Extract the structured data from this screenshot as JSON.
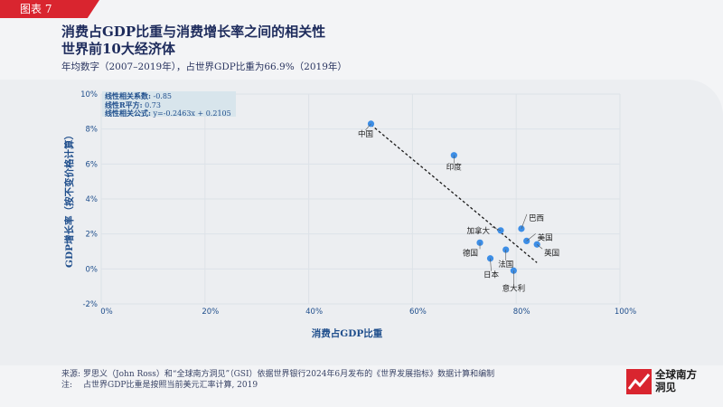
{
  "tag": "图表 7",
  "title_line1": "消费占GDP比重与消费增长率之间的相关性",
  "title_line2": "世界前10大经济体",
  "subtitle": "年均数字（2007–2019年），占世界GDP比重为66.9%（2019年）",
  "stats": {
    "corr_label": "线性相关系数:",
    "corr_value": " -0.85",
    "r2_label": "线性R平方:",
    "r2_value": " 0.73",
    "formula_label": "线性相关公式:",
    "formula_value": " y=-0.2463x + 0.2105"
  },
  "chart_data": {
    "type": "scatter",
    "xlabel": "消费占GDP比重",
    "ylabel": "GDP增长率（按不变价格计算）",
    "xlim": [
      0,
      1
    ],
    "ylim": [
      -0.02,
      0.1
    ],
    "x_ticks": [
      0,
      0.2,
      0.4,
      0.6,
      0.8,
      1.0
    ],
    "x_tick_labels": [
      "0%",
      "20%",
      "40%",
      "60%",
      "80%",
      "100%"
    ],
    "y_ticks": [
      -0.02,
      0,
      0.02,
      0.04,
      0.06,
      0.08,
      0.1
    ],
    "y_tick_labels": [
      "-2%",
      "0%",
      "2%",
      "4%",
      "6%",
      "8%",
      "10%"
    ],
    "grid": true,
    "points": [
      {
        "label": "中国",
        "x": 0.52,
        "y": 0.083
      },
      {
        "label": "印度",
        "x": 0.68,
        "y": 0.065
      },
      {
        "label": "巴西",
        "x": 0.81,
        "y": 0.023
      },
      {
        "label": "加拿大",
        "x": 0.77,
        "y": 0.022
      },
      {
        "label": "美国",
        "x": 0.82,
        "y": 0.016
      },
      {
        "label": "英国",
        "x": 0.84,
        "y": 0.014
      },
      {
        "label": "德国",
        "x": 0.73,
        "y": 0.015
      },
      {
        "label": "法国",
        "x": 0.78,
        "y": 0.011
      },
      {
        "label": "日本",
        "x": 0.75,
        "y": 0.006
      },
      {
        "label": "意大利",
        "x": 0.795,
        "y": -0.001
      }
    ],
    "trendline": {
      "slope": -0.2463,
      "intercept": 0.2105,
      "x_range": [
        0.52,
        0.84
      ]
    },
    "colors": {
      "point": "#3d8ee6",
      "trend": "#1a1a1a",
      "axis_text": "#1f4e8c"
    }
  },
  "footer": {
    "source_label": "来源:",
    "source_text": "罗思义（John Ross）和“全球南方洞见”（GSI）依据世界银行2024年6月发布的《世界发展指标》数据计算和编制",
    "note_label": "注:",
    "note_text": "占世界GDP比重是按照当前美元汇率计算, 2019"
  },
  "logo": {
    "line1": "全球南方",
    "line2": "洞见"
  }
}
